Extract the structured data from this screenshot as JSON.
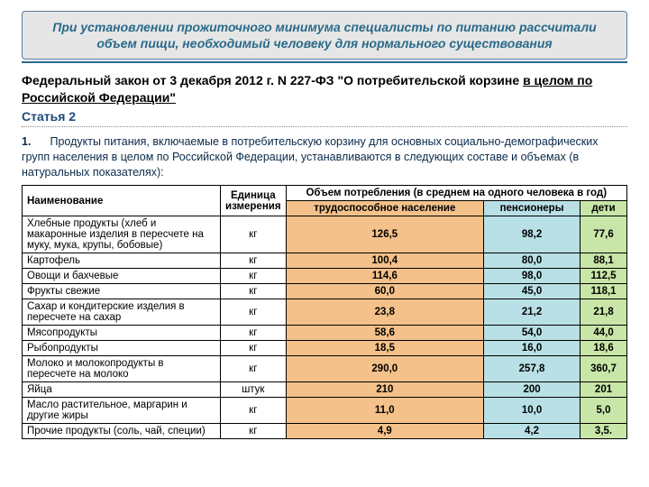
{
  "header": "При установлении прожиточного минимума специалисты по питанию рассчитали объем пищи, необходимый человеку для нормального существования",
  "law_prefix": "Федеральный закон от 3 декабря 2012 г. N 227-ФЗ \"О потребительской корзине ",
  "law_underlined": "в целом по Российской Федерации\"",
  "article_label": "Статья 2",
  "article_num": "1.",
  "article_text": "Продукты питания, включаемые в потребительскую корзину для основных социально-демографических групп населения в целом по Российской Федерации, устанавливаются в следующих составе и объемах (в натуральных показателях):",
  "colors": {
    "header_text": "#2a6a8a",
    "header_bg": "#e6e6e6",
    "article_color": "#1a4a7a",
    "col_work_bg": "#f4c18a",
    "col_pens_bg": "#b8e0e6",
    "col_kids_bg": "#c8e6a8"
  },
  "table": {
    "head_name": "Наименование",
    "head_unit": "Единица измерения",
    "head_span": "Объем потребления (в среднем на одного человека в год)",
    "sub_work": "трудоспособное население",
    "sub_pens": "пенсионеры",
    "sub_kids": "дети",
    "rows": [
      {
        "name": "Хлебные продукты (хлеб и макаронные изделия в пересчете на муку, мука, крупы, бобовые)",
        "unit": "кг",
        "work": "126,5",
        "pens": "98,2",
        "kids": "77,6"
      },
      {
        "name": "Картофель",
        "unit": "кг",
        "work": "100,4",
        "pens": "80,0",
        "kids": "88,1"
      },
      {
        "name": "Овощи и бахчевые",
        "unit": "кг",
        "work": "114,6",
        "pens": "98,0",
        "kids": "112,5"
      },
      {
        "name": "Фрукты свежие",
        "unit": "кг",
        "work": "60,0",
        "pens": "45,0",
        "kids": "118,1"
      },
      {
        "name": "Сахар и кондитерские изделия в пересчете на сахар",
        "unit": "кг",
        "work": "23,8",
        "pens": "21,2",
        "kids": "21,8"
      },
      {
        "name": "Мясопродукты",
        "unit": "кг",
        "work": "58,6",
        "pens": "54,0",
        "kids": "44,0"
      },
      {
        "name": "Рыбопродукты",
        "unit": "кг",
        "work": "18,5",
        "pens": "16,0",
        "kids": "18,6"
      },
      {
        "name": "Молоко и молокопродукты в пересчете на молоко",
        "unit": "кг",
        "work": "290,0",
        "pens": "257,8",
        "kids": "360,7"
      },
      {
        "name": "Яйца",
        "unit": "штук",
        "work": "210",
        "pens": "200",
        "kids": "201"
      },
      {
        "name": "Масло растительное, маргарин и другие жиры",
        "unit": "кг",
        "work": "11,0",
        "pens": "10,0",
        "kids": "5,0"
      },
      {
        "name": "Прочие продукты (соль, чай, специи)",
        "unit": "кг",
        "work": "4,9",
        "pens": "4,2",
        "kids": "3,5."
      }
    ]
  }
}
